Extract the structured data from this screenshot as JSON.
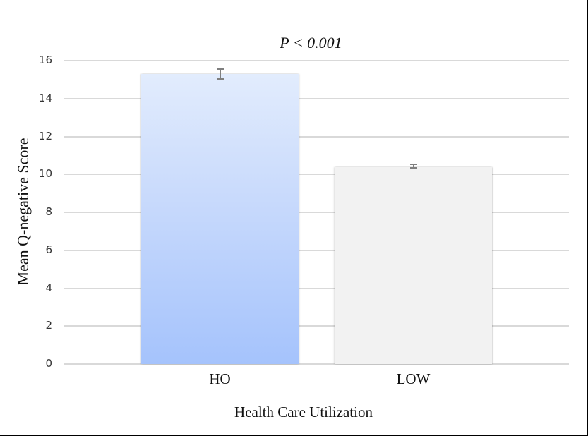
{
  "chart_data": {
    "type": "bar",
    "title": "P < 0.001",
    "categories": [
      "HO",
      "LOW"
    ],
    "values": [
      15.3,
      10.4
    ],
    "error_bars": [
      {
        "low": 15.0,
        "high": 15.6
      },
      {
        "low": 10.3,
        "high": 10.55
      }
    ],
    "xlabel": "Health Care Utilization",
    "ylabel": "Mean Q-negative Score",
    "ylim": [
      0,
      16
    ],
    "yticks": [
      "0",
      "2",
      "4",
      "6",
      "8",
      "10",
      "12",
      "14",
      "16"
    ],
    "grid": true,
    "legend": null,
    "colors": {
      "HO": "#a5c3fc",
      "LOW": "#f2f2f2"
    }
  },
  "annotation": "P < 0.001"
}
